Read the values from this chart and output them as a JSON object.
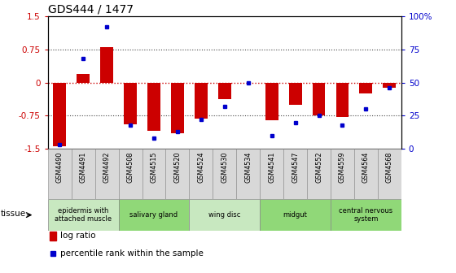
{
  "title": "GDS444 / 1477",
  "samples": [
    "GSM4490",
    "GSM4491",
    "GSM4492",
    "GSM4508",
    "GSM4515",
    "GSM4520",
    "GSM4524",
    "GSM4530",
    "GSM4534",
    "GSM4541",
    "GSM4547",
    "GSM4552",
    "GSM4559",
    "GSM4564",
    "GSM4568"
  ],
  "log_ratio": [
    -1.45,
    0.2,
    0.8,
    -0.95,
    -1.1,
    -1.15,
    -0.82,
    -0.38,
    0.0,
    -0.85,
    -0.5,
    -0.75,
    -0.78,
    -0.25,
    -0.12
  ],
  "percentile": [
    3,
    68,
    92,
    18,
    8,
    13,
    22,
    32,
    50,
    10,
    20,
    25,
    18,
    30,
    46
  ],
  "tissue_groups": [
    {
      "label": "epidermis with\nattached muscle",
      "start": 0,
      "end": 3,
      "color": "#c8e8c0"
    },
    {
      "label": "salivary gland",
      "start": 3,
      "end": 6,
      "color": "#90d878"
    },
    {
      "label": "wing disc",
      "start": 6,
      "end": 9,
      "color": "#c8e8c0"
    },
    {
      "label": "midgut",
      "start": 9,
      "end": 12,
      "color": "#90d878"
    },
    {
      "label": "central nervous\nsystem",
      "start": 12,
      "end": 15,
      "color": "#90d878"
    }
  ],
  "bar_color": "#cc0000",
  "dot_color": "#0000cc",
  "ylim": [
    -1.5,
    1.5
  ],
  "y2lim": [
    0,
    100
  ],
  "yticks": [
    -1.5,
    -0.75,
    0,
    0.75,
    1.5
  ],
  "y2ticks": [
    0,
    25,
    50,
    75,
    100
  ],
  "bar_width": 0.55,
  "cell_color": "#d8d8d8"
}
